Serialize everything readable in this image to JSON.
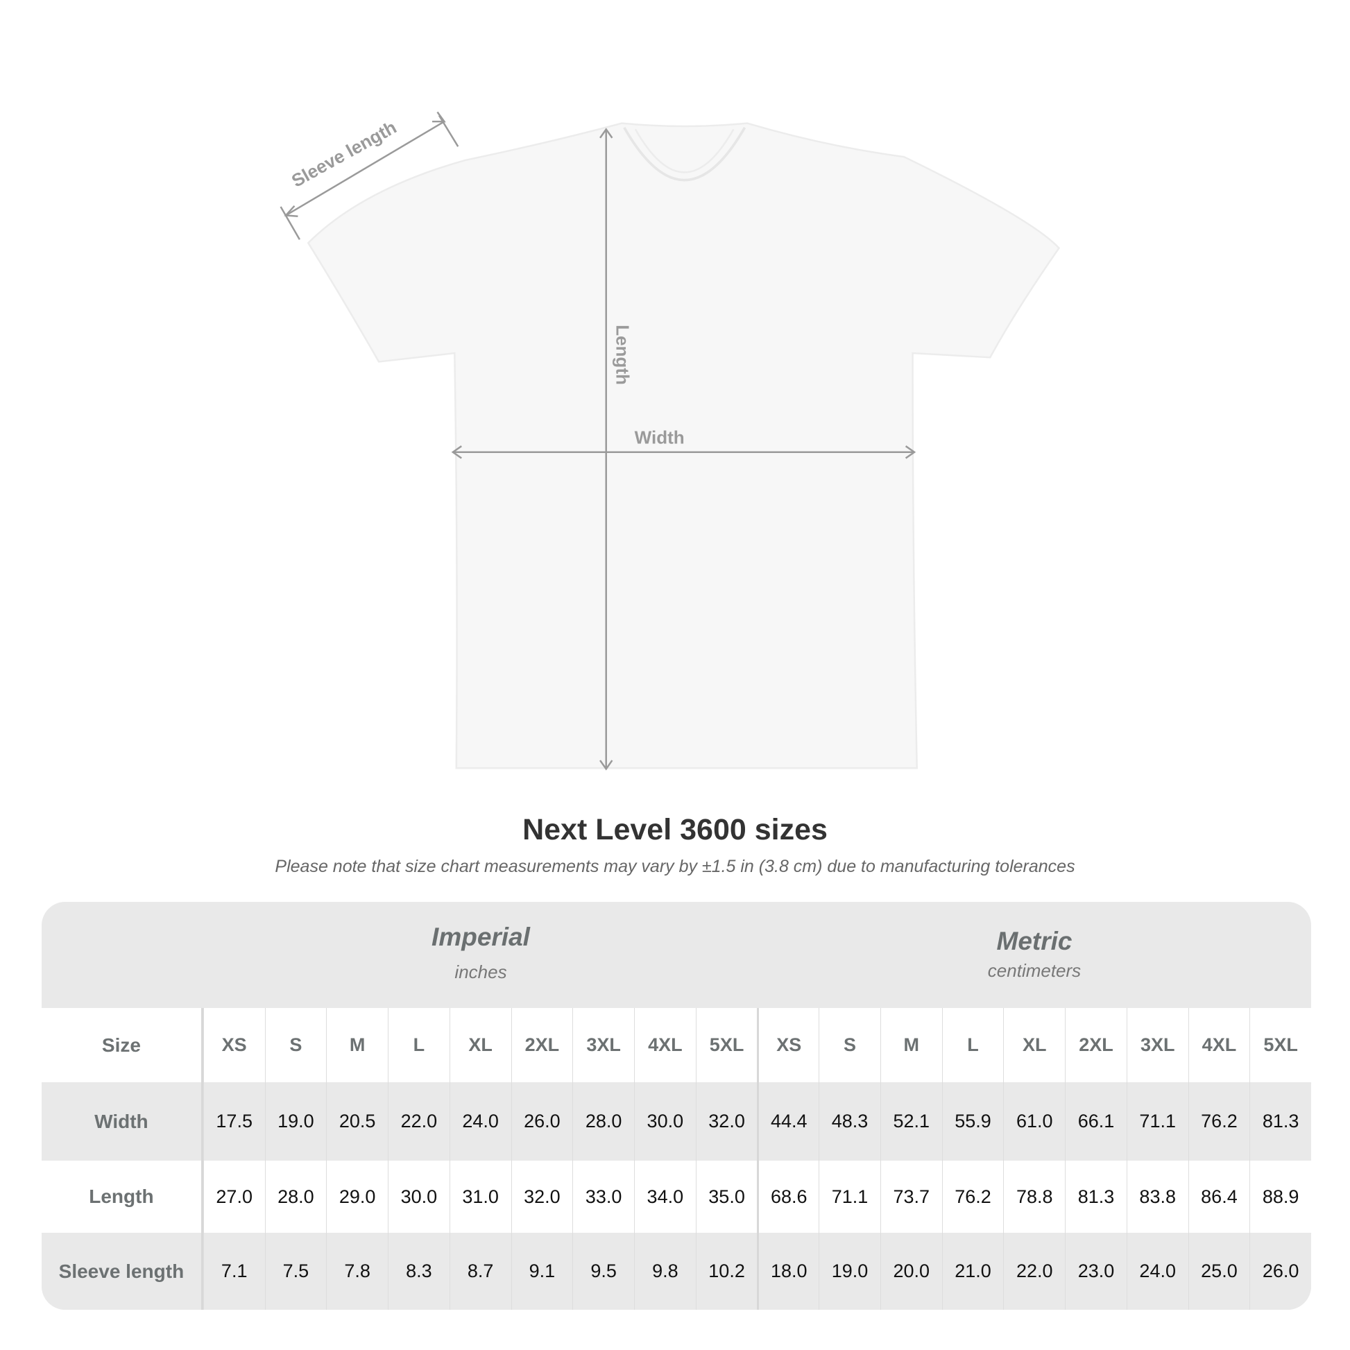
{
  "diagram": {
    "labels": {
      "sleeve": "Sleeve length",
      "length": "Length",
      "width": "Width"
    },
    "shirt_color": "#f7f7f7",
    "arrow_color": "#9a9a9a"
  },
  "title": "Next Level 3600 sizes",
  "subtitle": "Please note that size chart measurements may vary by ±1.5 in (3.8 cm) due to manufacturing tolerances",
  "table": {
    "imperial": {
      "name": "Imperial",
      "unit": "inches"
    },
    "metric": {
      "name": "Metric",
      "unit": "centimeters"
    },
    "size_label": "Size",
    "sizes": [
      "XS",
      "S",
      "M",
      "L",
      "XL",
      "2XL",
      "3XL",
      "4XL",
      "5XL"
    ],
    "rows": [
      {
        "label": "Width",
        "imperial": [
          "17.5",
          "19.0",
          "20.5",
          "22.0",
          "24.0",
          "26.0",
          "28.0",
          "30.0",
          "32.0"
        ],
        "metric": [
          "44.4",
          "48.3",
          "52.1",
          "55.9",
          "61.0",
          "66.1",
          "71.1",
          "76.2",
          "81.3"
        ]
      },
      {
        "label": "Length",
        "imperial": [
          "27.0",
          "28.0",
          "29.0",
          "30.0",
          "31.0",
          "32.0",
          "33.0",
          "34.0",
          "35.0"
        ],
        "metric": [
          "68.6",
          "71.1",
          "73.7",
          "76.2",
          "78.8",
          "81.3",
          "83.8",
          "86.4",
          "88.9"
        ]
      },
      {
        "label": "Sleeve length",
        "imperial": [
          "7.1",
          "7.5",
          "7.8",
          "8.3",
          "8.7",
          "9.1",
          "9.5",
          "9.8",
          "10.2"
        ],
        "metric": [
          "18.0",
          "19.0",
          "20.0",
          "21.0",
          "22.0",
          "23.0",
          "24.0",
          "25.0",
          "26.0"
        ]
      }
    ]
  }
}
